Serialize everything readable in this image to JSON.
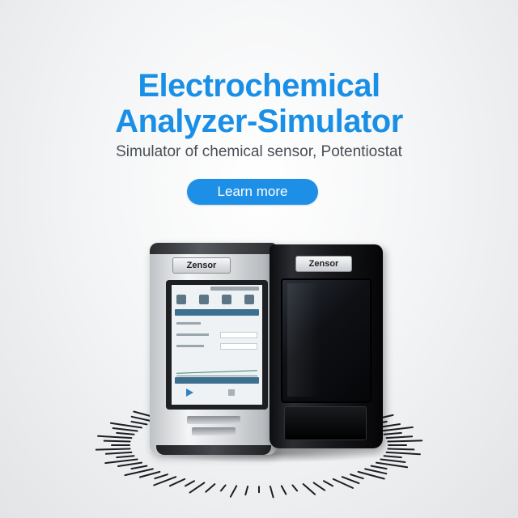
{
  "hero": {
    "title_line1": "Electrochemical",
    "title_line2": "Analyzer-Simulator",
    "subtitle": "Simulator of chemical sensor, Potentiostat",
    "cta_label": "Learn more",
    "accent_color": "#1a8fe6"
  },
  "devices": {
    "silver_brand": "Zensor",
    "black_brand": "Zensor"
  }
}
